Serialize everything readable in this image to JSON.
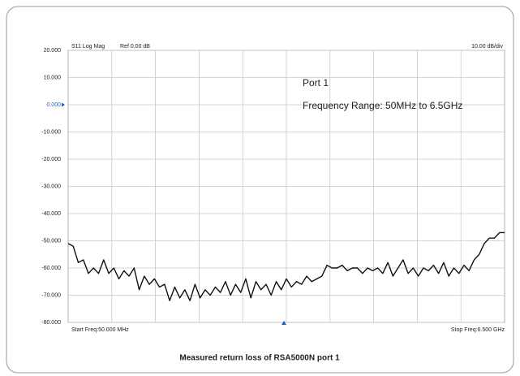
{
  "chart_data": {
    "type": "line",
    "trace_label": "S11  Log Mag",
    "ref_label": "Ref 0.00 dB",
    "scale_label": "10.00  dB/div",
    "start_label": "Start Freq:50.000 MHz",
    "stop_label": "Stop Freq:6.500 GHz",
    "annotations": [
      "Port 1",
      "Frequency Range: 50MHz to 6.5GHz"
    ],
    "caption": "Measured return loss of RSA5000N port 1",
    "color": "#111111",
    "grid": true,
    "xlim": [
      0.05,
      6.5
    ],
    "ylim": [
      -80,
      20
    ],
    "yticks": [
      {
        "value": 20,
        "label": "20.000"
      },
      {
        "value": 10,
        "label": "10.000"
      },
      {
        "value": 0,
        "label": "0.000"
      },
      {
        "value": -10,
        "label": "-10.000"
      },
      {
        "value": -20,
        "label": "-20.000"
      },
      {
        "value": -30,
        "label": "-30.000"
      },
      {
        "value": -40,
        "label": "-40.000"
      },
      {
        "value": -50,
        "label": "-50.000"
      },
      {
        "value": -60,
        "label": "-60.000"
      },
      {
        "value": -70,
        "label": "-70.000"
      },
      {
        "value": -80,
        "label": "-80.000"
      }
    ],
    "x": [
      0.05,
      0.125,
      0.2,
      0.275,
      0.35,
      0.425,
      0.5,
      0.575,
      0.65,
      0.725,
      0.8,
      0.875,
      0.95,
      1.025,
      1.1,
      1.175,
      1.25,
      1.325,
      1.4,
      1.475,
      1.55,
      1.625,
      1.7,
      1.775,
      1.85,
      1.925,
      2.0,
      2.075,
      2.15,
      2.225,
      2.3,
      2.375,
      2.45,
      2.525,
      2.6,
      2.675,
      2.75,
      2.825,
      2.9,
      2.975,
      3.05,
      3.125,
      3.2,
      3.275,
      3.35,
      3.425,
      3.5,
      3.575,
      3.65,
      3.725,
      3.8,
      3.875,
      3.95,
      4.025,
      4.1,
      4.175,
      4.25,
      4.325,
      4.4,
      4.475,
      4.55,
      4.625,
      4.7,
      4.775,
      4.85,
      4.925,
      5.0,
      5.075,
      5.15,
      5.225,
      5.3,
      5.375,
      5.45,
      5.525,
      5.6,
      5.675,
      5.75,
      5.825,
      5.9,
      5.975,
      6.05,
      6.125,
      6.2,
      6.275,
      6.35,
      6.425,
      6.5
    ],
    "values": [
      -51,
      -52,
      -58,
      -57,
      -62,
      -60,
      -62,
      -57,
      -62,
      -60,
      -64,
      -61,
      -63,
      -60,
      -68,
      -63,
      -66,
      -64,
      -67,
      -66,
      -72,
      -67,
      -71,
      -68,
      -72,
      -66,
      -71,
      -68,
      -70,
      -67,
      -69,
      -65,
      -70,
      -66,
      -69,
      -64,
      -71,
      -65,
      -68,
      -66,
      -70,
      -65,
      -68,
      -64,
      -67,
      -65,
      -66,
      -63,
      -65,
      -64,
      -63,
      -59,
      -60,
      -60,
      -59,
      -61,
      -60,
      -60,
      -62,
      -60,
      -61,
      -60,
      -62,
      -58,
      -63,
      -60,
      -57,
      -62,
      -60,
      -63,
      -60,
      -61,
      -59,
      -62,
      -58,
      -63,
      -60,
      -62,
      -59,
      -61,
      -57,
      -55,
      -51,
      -49,
      -49,
      -47,
      -47
    ]
  }
}
